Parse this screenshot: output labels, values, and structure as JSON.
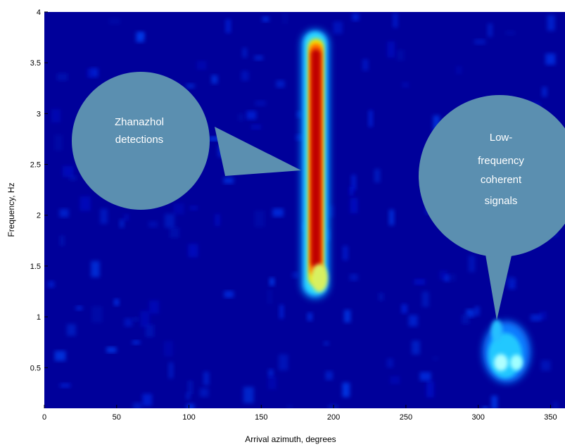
{
  "chart_data": {
    "type": "heatmap",
    "xlabel": "Arrival azimuth, degrees",
    "ylabel": "Frequency, Hz",
    "xlim": [
      0,
      360
    ],
    "ylim": [
      0.1,
      4
    ],
    "x_ticks": [
      0,
      50,
      100,
      150,
      200,
      250,
      300,
      350
    ],
    "x_tick_labels": [
      "0",
      "50",
      "100",
      "150",
      "200",
      "250",
      "300",
      "350"
    ],
    "y_ticks": [
      0.5,
      1,
      1.5,
      2,
      2.5,
      3,
      3.5,
      4
    ],
    "y_tick_labels": [
      "0.5",
      "1",
      "1.5",
      "2",
      "2.5",
      "3",
      "3.5",
      "4"
    ],
    "colormap": "jet",
    "background_color": "#00009a",
    "features": [
      {
        "azimuth_deg": 186,
        "freq_min_hz": 1.2,
        "freq_max_hz": 3.8,
        "intensity": "high"
      },
      {
        "azimuth_deg": 315,
        "freq_min_hz": 0.35,
        "freq_max_hz": 0.9,
        "intensity": "medium"
      }
    ],
    "annotations": [
      {
        "lines": [
          "Zhanazhol",
          "detections"
        ],
        "points_to": {
          "azimuth_deg": 178,
          "freq_hz": 2.45
        }
      },
      {
        "lines": [
          "Low-",
          "frequency",
          "coherent",
          "signals"
        ],
        "points_to": {
          "azimuth_deg": 310,
          "freq_hz": 1.0
        }
      }
    ],
    "callout_color": "#5b8fb0"
  }
}
